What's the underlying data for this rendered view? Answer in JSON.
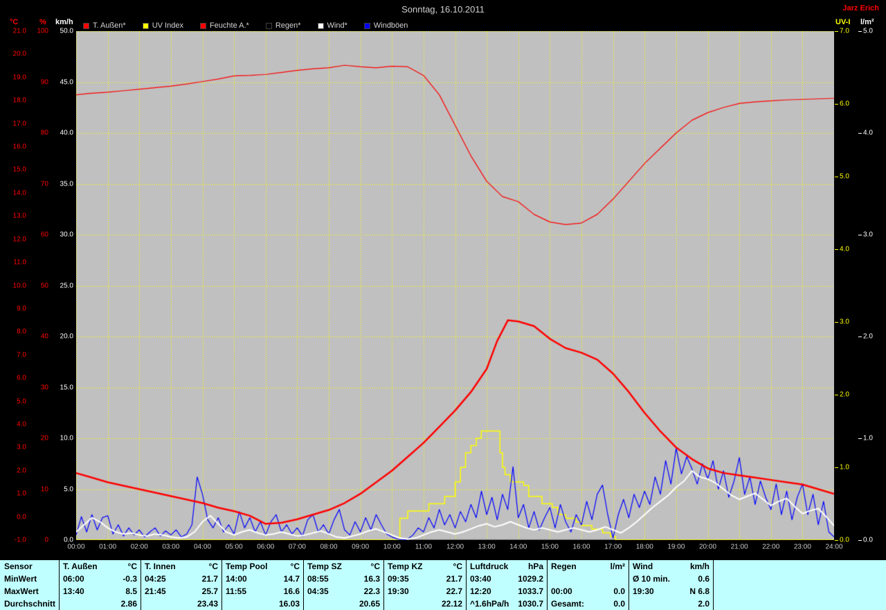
{
  "header": {
    "title": "Sonntag, 16.10.2011",
    "owner": "Jarz Erich"
  },
  "legend": [
    {
      "name": "t-aussen",
      "label": "T. Außen*",
      "color": "#ff0000"
    },
    {
      "name": "uv-index",
      "label": "UV Index",
      "color": "#ffff00"
    },
    {
      "name": "feuchte-a",
      "label": "Feuchte A.*",
      "color": "#ff0000"
    },
    {
      "name": "regen",
      "label": "Regen*",
      "color": "#000000"
    },
    {
      "name": "wind",
      "label": "Wind*",
      "color": "#ffffff"
    },
    {
      "name": "windboeen",
      "label": "Windböen",
      "color": "#0000ff"
    }
  ],
  "chart_data": {
    "type": "line",
    "title": "Sonntag, 16.10.2011",
    "plot_bg": "#c0c0c0",
    "grid": {
      "color": "#ffff00",
      "style": "dashed",
      "x_divisions": 24,
      "y_divisions": 10
    },
    "x_axis": {
      "unit": "hours",
      "min": 0,
      "max": 24,
      "tick_labels": [
        "00:00",
        "01:00",
        "02:00",
        "03:00",
        "04:00",
        "05:00",
        "06:00",
        "07:00",
        "08:00",
        "09:00",
        "10:00",
        "11:00",
        "12:00",
        "13:00",
        "14:00",
        "15:00",
        "16:00",
        "17:00",
        "18:00",
        "19:00",
        "20:00",
        "21:00",
        "22:00",
        "23:00",
        "24:00"
      ]
    },
    "y_axes": [
      {
        "name": "temp",
        "header": "°C",
        "side": "left",
        "col": 0,
        "color": "#ff0000",
        "min": -1,
        "max": 21,
        "tick_labels": [
          "21.0",
          "20.0",
          "19.0",
          "18.0",
          "17.0",
          "16.0",
          "15.0",
          "14.0",
          "13.0",
          "12.0",
          "11.0",
          "10.0",
          "9.0",
          "8.0",
          "7.0",
          "6.0",
          "5.0",
          "4.0",
          "3.0",
          "2.0",
          "1.0",
          "0.0",
          "-1.0"
        ]
      },
      {
        "name": "humidity",
        "header": "%",
        "side": "left",
        "col": 1,
        "color": "#ff0000",
        "min": 0,
        "max": 100,
        "tick_labels": [
          "100",
          "90",
          "80",
          "70",
          "60",
          "50",
          "40",
          "30",
          "20",
          "10",
          "0"
        ]
      },
      {
        "name": "wind",
        "header": "km/h",
        "side": "left",
        "col": 2,
        "color": "#ffffff",
        "min": 0,
        "max": 50,
        "tick_labels": [
          "50.0",
          "45.0",
          "40.0",
          "35.0",
          "30.0",
          "25.0",
          "20.0",
          "15.0",
          "10.0",
          "5.0",
          "0.0"
        ]
      },
      {
        "name": "uv",
        "header": "UV-I",
        "side": "right",
        "col": 0,
        "color": "#ffff00",
        "min": 0,
        "max": 7,
        "tick_labels": [
          "7.0",
          "6.0",
          "5.0",
          "4.0",
          "3.0",
          "2.0",
          "1.0",
          "0.0"
        ]
      },
      {
        "name": "rain",
        "header": "l/m²",
        "side": "right",
        "col": 1,
        "color": "#ffffff",
        "min": 0,
        "max": 5,
        "tick_labels": [
          "5.0",
          "4.0",
          "3.0",
          "2.0",
          "1.0",
          "0.0"
        ]
      }
    ],
    "series": [
      {
        "name": "Regen*",
        "axis": "rain",
        "color": "#000000",
        "width": 1,
        "points": [
          [
            0,
            0
          ],
          [
            24,
            0
          ]
        ]
      },
      {
        "name": "UV Index",
        "axis": "uv",
        "color": "#ffff00",
        "width": 1.5,
        "step": true,
        "points": [
          [
            0,
            0
          ],
          [
            10.17,
            0
          ],
          [
            10.25,
            0.3
          ],
          [
            10.5,
            0.4
          ],
          [
            11.17,
            0.5
          ],
          [
            11.67,
            0.6
          ],
          [
            12,
            0.8
          ],
          [
            12.17,
            1.0
          ],
          [
            12.33,
            1.2
          ],
          [
            12.5,
            1.3
          ],
          [
            12.67,
            1.4
          ],
          [
            12.83,
            1.5
          ],
          [
            13.33,
            1.5
          ],
          [
            13.42,
            1.2
          ],
          [
            13.5,
            1.0
          ],
          [
            13.58,
            0.9
          ],
          [
            13.75,
            0.8
          ],
          [
            14.17,
            0.75
          ],
          [
            14.33,
            0.6
          ],
          [
            14.75,
            0.5
          ],
          [
            15.08,
            0.45
          ],
          [
            15.25,
            0.35
          ],
          [
            15.5,
            0.3
          ],
          [
            15.83,
            0.25
          ],
          [
            16,
            0.2
          ],
          [
            16.33,
            0.15
          ],
          [
            16.67,
            0.1
          ],
          [
            16.92,
            0.05
          ],
          [
            17.08,
            0
          ],
          [
            24,
            0
          ]
        ]
      },
      {
        "name": "Windböen",
        "axis": "wind",
        "color": "#0000ff",
        "width": 1.2,
        "x0": 0,
        "dx": 0.1666667,
        "values": [
          0.5,
          2.3,
          0.8,
          2.5,
          1.0,
          2.2,
          2.4,
          0.6,
          1.5,
          0.4,
          1.2,
          0.5,
          1.0,
          0.3,
          0.8,
          1.2,
          0.4,
          0.9,
          0.5,
          1.0,
          0.3,
          0.6,
          1.5,
          6.2,
          4.5,
          2.0,
          1.2,
          2.2,
          0.8,
          1.5,
          0.6,
          2.8,
          1.2,
          2.2,
          0.8,
          1.8,
          0.5,
          1.8,
          2.5,
          0.8,
          1.5,
          0.6,
          1.2,
          0.4,
          2.0,
          2.5,
          0.8,
          1.5,
          0.6,
          2.0,
          3.0,
          1.0,
          0.5,
          1.8,
          0.8,
          2.2,
          1.0,
          2.5,
          1.5,
          0.6,
          0.3,
          0.1,
          0.0,
          0.1,
          0.5,
          1.2,
          0.8,
          2.2,
          1.2,
          3.0,
          1.5,
          2.5,
          1.2,
          2.8,
          1.8,
          3.5,
          2.2,
          4.8,
          2.5,
          4.2,
          2.0,
          4.5,
          3.0,
          7.2,
          2.2,
          3.5,
          1.2,
          2.8,
          1.0,
          2.2,
          3.2,
          1.2,
          3.5,
          1.8,
          0.8,
          2.5,
          1.5,
          3.8,
          2.0,
          4.5,
          5.4,
          2.5,
          0.2,
          2.5,
          4.0,
          2.2,
          4.5,
          3.2,
          4.8,
          3.5,
          6.2,
          4.5,
          7.8,
          5.5,
          9.0,
          6.5,
          8.2,
          7.0,
          5.5,
          7.5,
          6.0,
          7.8,
          5.0,
          6.8,
          4.2,
          5.8,
          8.1,
          4.5,
          6.2,
          3.5,
          5.8,
          4.2,
          3.0,
          5.5,
          2.5,
          4.8,
          2.0,
          4.2,
          5.5,
          2.5,
          4.5,
          1.5,
          3.8,
          0.8,
          0.3
        ]
      },
      {
        "name": "Wind*",
        "axis": "wind",
        "color": "#ffffff",
        "width": 2,
        "x0": 0,
        "dx": 0.25,
        "values": [
          0.8,
          1.5,
          2.2,
          1.8,
          1.2,
          0.8,
          0.6,
          0.7,
          0.5,
          0.4,
          0.6,
          0.5,
          0.3,
          0.2,
          0.3,
          0.8,
          1.8,
          2.4,
          1.6,
          0.8,
          0.5,
          0.8,
          1.0,
          0.7,
          0.5,
          0.6,
          0.8,
          0.6,
          0.4,
          0.5,
          0.7,
          0.9,
          0.6,
          0.3,
          0.2,
          0.4,
          0.6,
          0.9,
          1.1,
          0.8,
          0.5,
          0.2,
          0.1,
          0.2,
          0.5,
          0.8,
          1.0,
          0.8,
          0.6,
          0.8,
          1.1,
          1.4,
          1.6,
          1.3,
          1.5,
          1.8,
          1.5,
          1.2,
          1.0,
          1.2,
          1.0,
          0.8,
          1.0,
          1.2,
          1.0,
          0.8,
          1.0,
          1.3,
          1.0,
          0.7,
          1.2,
          1.8,
          2.5,
          3.2,
          3.8,
          4.4,
          5.2,
          5.8,
          6.8,
          6.2,
          6.0,
          5.6,
          5.0,
          4.4,
          4.0,
          4.3,
          4.6,
          4.0,
          3.4,
          3.8,
          4.1,
          3.3,
          2.6,
          2.9,
          3.1,
          2.3,
          1.4
        ]
      },
      {
        "name": "Feuchte A.*",
        "axis": "humidity",
        "color": "#ff0000",
        "width": 1.2,
        "points": [
          [
            0,
            87.5
          ],
          [
            0.5,
            87.8
          ],
          [
            1,
            88.0
          ],
          [
            1.5,
            88.3
          ],
          [
            2,
            88.6
          ],
          [
            2.5,
            88.9
          ],
          [
            3,
            89.2
          ],
          [
            3.5,
            89.6
          ],
          [
            4,
            90.1
          ],
          [
            4.5,
            90.6
          ],
          [
            5,
            91.2
          ],
          [
            5.5,
            91.3
          ],
          [
            6,
            91.5
          ],
          [
            6.5,
            91.9
          ],
          [
            7,
            92.3
          ],
          [
            7.5,
            92.6
          ],
          [
            8,
            92.8
          ],
          [
            8.5,
            93.3
          ],
          [
            9,
            93.0
          ],
          [
            9.5,
            92.8
          ],
          [
            10,
            93.1
          ],
          [
            10.5,
            93.0
          ],
          [
            11,
            91.3
          ],
          [
            11.5,
            87.5
          ],
          [
            12,
            81.5
          ],
          [
            12.5,
            75.5
          ],
          [
            13,
            70.5
          ],
          [
            13.5,
            67.5
          ],
          [
            14,
            66.5
          ],
          [
            14.5,
            64.0
          ],
          [
            15,
            62.5
          ],
          [
            15.5,
            62.0
          ],
          [
            16,
            62.3
          ],
          [
            16.5,
            64.0
          ],
          [
            17,
            67.0
          ],
          [
            17.5,
            70.5
          ],
          [
            18,
            74.0
          ],
          [
            18.5,
            77.0
          ],
          [
            19,
            80.0
          ],
          [
            19.5,
            82.5
          ],
          [
            20,
            84.0
          ],
          [
            20.5,
            85.0
          ],
          [
            21,
            85.8
          ],
          [
            21.5,
            86.1
          ],
          [
            22,
            86.3
          ],
          [
            22.5,
            86.5
          ],
          [
            23,
            86.6
          ],
          [
            23.5,
            86.7
          ],
          [
            24,
            86.8
          ]
        ]
      },
      {
        "name": "T. Außen*",
        "axis": "temp",
        "color": "#ff0000",
        "width": 2.5,
        "points": [
          [
            0,
            1.9
          ],
          [
            0.5,
            1.7
          ],
          [
            1,
            1.5
          ],
          [
            1.5,
            1.35
          ],
          [
            2,
            1.2
          ],
          [
            2.5,
            1.05
          ],
          [
            3,
            0.9
          ],
          [
            3.5,
            0.75
          ],
          [
            4,
            0.6
          ],
          [
            4.5,
            0.4
          ],
          [
            5,
            0.25
          ],
          [
            5.5,
            0.05
          ],
          [
            6,
            -0.3
          ],
          [
            6.5,
            -0.25
          ],
          [
            7,
            -0.1
          ],
          [
            7.5,
            0.1
          ],
          [
            8,
            0.3
          ],
          [
            8.5,
            0.6
          ],
          [
            9,
            1.0
          ],
          [
            9.5,
            1.5
          ],
          [
            10,
            2.0
          ],
          [
            10.5,
            2.6
          ],
          [
            11,
            3.2
          ],
          [
            11.5,
            3.9
          ],
          [
            12,
            4.6
          ],
          [
            12.5,
            5.4
          ],
          [
            13,
            6.4
          ],
          [
            13.33,
            7.6
          ],
          [
            13.67,
            8.5
          ],
          [
            14,
            8.45
          ],
          [
            14.5,
            8.25
          ],
          [
            15,
            7.7
          ],
          [
            15.5,
            7.3
          ],
          [
            16,
            7.1
          ],
          [
            16.5,
            6.8
          ],
          [
            17,
            6.2
          ],
          [
            17.5,
            5.4
          ],
          [
            18,
            4.5
          ],
          [
            18.5,
            3.7
          ],
          [
            19,
            3.0
          ],
          [
            19.5,
            2.5
          ],
          [
            20,
            2.1
          ],
          [
            20.5,
            1.9
          ],
          [
            21,
            1.8
          ],
          [
            21.5,
            1.7
          ],
          [
            22,
            1.6
          ],
          [
            22.5,
            1.5
          ],
          [
            23,
            1.4
          ],
          [
            23.5,
            1.2
          ],
          [
            24,
            1.0
          ]
        ]
      }
    ]
  },
  "stats_table": {
    "row_labels": [
      "Sensor",
      "MinWert",
      "MaxWert",
      "Durchschnitt"
    ],
    "sensors": [
      {
        "key": "t-aussen",
        "name": "T. Außen",
        "unit": "°C",
        "min": [
          "06:00",
          "-0.3"
        ],
        "max": [
          "13:40",
          "8.5"
        ],
        "avg": [
          "",
          "2.86"
        ]
      },
      {
        "key": "t-innen",
        "name": "T. Innen",
        "unit": "°C",
        "min": [
          "04:25",
          "21.7"
        ],
        "max": [
          "21:45",
          "25.7"
        ],
        "avg": [
          "",
          "23.43"
        ]
      },
      {
        "key": "temp-pool",
        "name": "Temp Pool",
        "unit": "°C",
        "min": [
          "14:00",
          "14.7"
        ],
        "max": [
          "11:55",
          "16.6"
        ],
        "avg": [
          "",
          "16.03"
        ]
      },
      {
        "key": "temp-sz",
        "name": "Temp SZ",
        "unit": "°C",
        "min": [
          "08:55",
          "16.3"
        ],
        "max": [
          "04:35",
          "22.3"
        ],
        "avg": [
          "",
          "20.65"
        ]
      },
      {
        "key": "temp-kz",
        "name": "Temp KZ",
        "unit": "°C",
        "min": [
          "09:35",
          "21.7"
        ],
        "max": [
          "19:30",
          "22.7"
        ],
        "avg": [
          "",
          "22.12"
        ]
      },
      {
        "key": "luftdruck",
        "name": "Luftdruck",
        "unit": "hPa",
        "min": [
          "03:40",
          "1029.2"
        ],
        "max": [
          "12:20",
          "1033.7"
        ],
        "avg": [
          "^1.6hPa/h",
          "1030.7"
        ]
      },
      {
        "key": "regen",
        "name": "Regen",
        "unit": "l/m²",
        "min": [
          "",
          ""
        ],
        "max": [
          "00:00",
          "0.0"
        ],
        "avg": [
          "Gesamt:",
          "0.0"
        ]
      },
      {
        "key": "wind",
        "name": "Wind",
        "unit": "km/h",
        "min": [
          "Ø 10 min.",
          "0.6"
        ],
        "max": [
          "19:30",
          "N 6.8"
        ],
        "avg": [
          "",
          "2.0"
        ]
      }
    ]
  }
}
